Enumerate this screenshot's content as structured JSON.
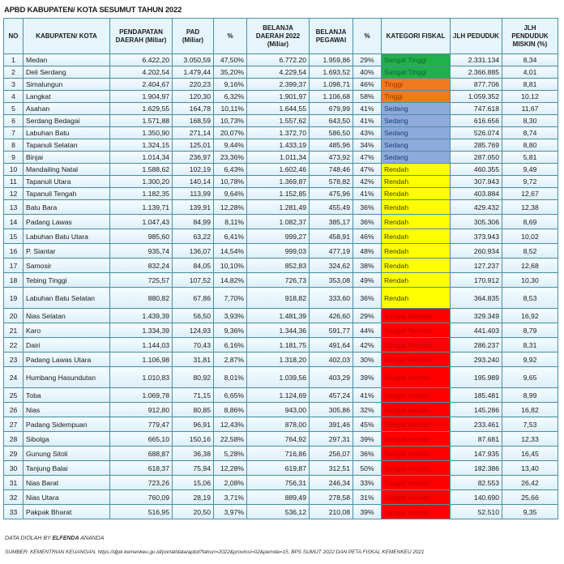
{
  "title": "APBD KABUPATEN/ KOTA SESUMUT TAHUN 2022",
  "headers": [
    "NO",
    "KABUPATEN/ KOTA",
    "PENDAPATAN DAERAH (Miliar)",
    "PAD (Miliar)",
    "%",
    "BELANJA DAERAH 2022 (Miliar)",
    "BELANJA PEGAWAI",
    "%",
    "KATEGORI FISKAL",
    "JLH PEDUDUK",
    "JLH PENDUDUK MISKIN (%)"
  ],
  "category_colors": {
    "Sangat Tinggi": "#22b04b",
    "Tinggi": "#f07a1e",
    "Sedang": "#8ea9db",
    "Rendah": "#ffff00",
    "Sangat Rendah": "#ff0000",
    "Sangat rendah": "#ff0000"
  },
  "category_text_colors": {
    "Sangat Tinggi": "#0f6a2a",
    "Tinggi": "#a03000",
    "Sedang": "#1f3f7a",
    "Rendah": "#3a3a00",
    "Sangat Rendah": "#c20000",
    "Sangat rendah": "#c20000"
  },
  "rows": [
    [
      "1",
      "Medan",
      "6.422,20",
      "3.050,59",
      "47,50%",
      "6.772.20",
      "1.959,86",
      "29%",
      "Sangat Tinggi",
      "2.331.134",
      "8,34"
    ],
    [
      "2",
      "Deli Serdang",
      "4.202,54",
      "1.479,44",
      "35,20%",
      "4.229,54",
      "1.693,52",
      "40%",
      "Sangat Tinggi",
      "2.366.885",
      "4,01"
    ],
    [
      "3",
      "Simalungun",
      "2.404,67",
      "220,23",
      "9,16%",
      "2.399,37",
      "1.098,71",
      "46%",
      "Tinggi",
      "877.706",
      "8,81"
    ],
    [
      "4",
      "Langkat",
      "1.904,97",
      "120,30",
      "6,32%",
      "1.901,97",
      "1.106,68",
      "58%",
      "Tinggi",
      "1.059.352",
      "10,12"
    ],
    [
      "5",
      "Asahan",
      "1.629,55",
      "164,78",
      "10,11%",
      "1.644,55",
      "679,99",
      "41%",
      "Sedang",
      "747.618",
      "11,67"
    ],
    [
      "6",
      "Serdang Bedagai",
      "1.571,88",
      "168,59",
      "10,73%",
      "1.557,62",
      "643,50",
      "41%",
      "Sedang",
      "616.656",
      "8,30"
    ],
    [
      "7",
      "Labuhan Batu",
      "1.350,90",
      "271,14",
      "20,07%",
      "1.372,70",
      "586,50",
      "43%",
      "Sedang",
      "526.074",
      "8,74"
    ],
    [
      "8",
      "Tapanuli Selatan",
      "1.324,15",
      "125,01",
      "9,44%",
      "1.433,19",
      "485,96",
      "34%",
      "Sedang",
      "285.769",
      "8,80"
    ],
    [
      "9",
      "Binjai",
      "1.014,34",
      "236,97",
      "23,36%",
      "1.011,34",
      "473,92",
      "47%",
      "Sedang",
      "287.050",
      "5,81"
    ],
    [
      "10",
      "Mandailing Natal",
      "1.588,62",
      "102,19",
      "6,43%",
      "1.602,46",
      "748,46",
      "47%",
      "Rendah",
      "460.355",
      "9,49"
    ],
    [
      "11",
      "Tapanuli Utara",
      "1.300,20",
      "140,14",
      "10,78%",
      "1.369,87",
      "578,82",
      "42%",
      "Rendah",
      "307.943",
      "9,72"
    ],
    [
      "12",
      "Tapanuli Tengah",
      "1.182,35",
      "113,99",
      "9,64%",
      "1.152,85",
      "475,96",
      "41%",
      "Rendah",
      "403.884",
      "12,67"
    ],
    [
      "13",
      "Batu Bara",
      "1.139,71",
      "139,91",
      "12,28%",
      "1.281,49",
      "455,49",
      "36%",
      "Rendah",
      "429.432",
      "12,38"
    ],
    [
      "14",
      "Padang Lawas",
      "1.047,43",
      "84,99",
      "8,11%",
      "1.082,37",
      "385,17",
      "36%",
      "Rendah",
      "305.306",
      "8,69"
    ],
    [
      "15",
      "Labuhan Batu Utara",
      "985,60",
      "63,22",
      "6,41%",
      "999,27",
      "458,91",
      "46%",
      "Rendah",
      "373.943",
      "10,02"
    ],
    [
      "16",
      "P. Siantar",
      "935,74",
      "136,07",
      "14,54%",
      "999,03",
      "477,19",
      "48%",
      "Rendah",
      "260.934",
      "8,52"
    ],
    [
      "17",
      "Samosir",
      "832,24",
      "84,05",
      "10,10%",
      "852,83",
      "324,62",
      "38%",
      "Rendah",
      "127.237",
      "12,68"
    ],
    [
      "18",
      "Tebing Tinggi",
      "725,57",
      "107,52",
      "14,82%",
      "726,73",
      "353,08",
      "49%",
      "Rendah",
      "170.912",
      "10,30"
    ],
    [
      "19",
      "Labuhan Batu Selatan",
      "880,82",
      "67,86",
      "7,70%",
      "918,82",
      "333,60",
      "36%",
      "Rendah",
      "364.835",
      "8,53"
    ],
    [
      "20",
      "Nias Selatan",
      "1.439,39",
      "56,50",
      "3,93%",
      "1.481,39",
      "426,60",
      "29%",
      "Sangat Rendah",
      "329.349",
      "16,92"
    ],
    [
      "21",
      "Karo",
      "1.334,39",
      "124,93",
      "9,36%",
      "1.344,36",
      "591,77",
      "44%",
      "Sangat Rendah",
      "441.403",
      "8,79"
    ],
    [
      "22",
      "Dairi",
      "1.144,03",
      "70,43",
      "6,16%",
      "1.181,75",
      "491,64",
      "42%",
      "Sangat Rendah",
      "286.237",
      "8,31"
    ],
    [
      "23",
      "Padang Lawas Utara",
      "1.106,98",
      "31,81",
      "2,87%",
      "1.318,20",
      "402,03",
      "30%",
      "Sangat Rendah",
      "293.240",
      "9,92"
    ],
    [
      "24",
      "Humbang Hasundutan",
      "1.010,83",
      "80,92",
      "8,01%",
      "1.039,56",
      "403,29",
      "39%",
      "Sangat rendah",
      "195.989",
      "9,65"
    ],
    [
      "25",
      "Toba",
      "1.069,78",
      "71,15",
      "6,65%",
      "1.124,69",
      "457,24",
      "41%",
      "Sangat rendah",
      "185.481",
      "8,99"
    ],
    [
      "26",
      "Nias",
      "912,80",
      "80,85",
      "8,86%",
      "943,00",
      "305,86",
      "32%",
      "Sangat rendah",
      "145.286",
      "16,82"
    ],
    [
      "27",
      "Padang Sidempuan",
      "779,47",
      "96,91",
      "12,43%",
      "878,00",
      "391,46",
      "45%",
      "Sangat rendah",
      "233.461",
      "7,53"
    ],
    [
      "28",
      "Sibolga",
      "665,10",
      "150,16",
      "22,58%",
      "764,92",
      "297,31",
      "39%",
      "Sangat rendah",
      "87.681",
      "12,33"
    ],
    [
      "29",
      "Gunung Sitoli",
      "688,87",
      "36,38",
      "5,28%",
      "716,86",
      "256,07",
      "36%",
      "Sangat rendah",
      "147.935",
      "16,45"
    ],
    [
      "30",
      "Tanjung Balai",
      "618,37",
      "75,94",
      "12,28%",
      "619,87",
      "312,51",
      "50%",
      "Sangat rendah",
      "182.386",
      "13,40"
    ],
    [
      "31",
      "Nias Barat",
      "723,26",
      "15,06",
      "2,08%",
      "756,31",
      "246,34",
      "33%",
      "Sangat rendah",
      "82.553",
      "26,42"
    ],
    [
      "32",
      "Nias Utara",
      "760,09",
      "28,19",
      "3,71%",
      "889,49",
      "278,58",
      "31%",
      "Sangat rendah",
      "140.690",
      "25,66"
    ],
    [
      "33",
      "Pakpak Bharat",
      "516,95",
      "20,50",
      "3,97%",
      "536,12",
      "210,08",
      "39%",
      "Sangat rendah",
      "52.510",
      "9,35"
    ]
  ],
  "footer": {
    "credit_prefix": "DATA DIOLAH BY ",
    "credit_name": "ELFENDA",
    "credit_suffix": " ANANDA",
    "source": "SUMBER: KEMENTRIAN KEUANGAN.  https://djpk.kemenkeu.go.id/portal/data/apbd?tahun=2022&provinsi=02&pemda=15, BPS SUMUT 2022 DAN PETA FISKAL KEMENKEU 2021"
  }
}
